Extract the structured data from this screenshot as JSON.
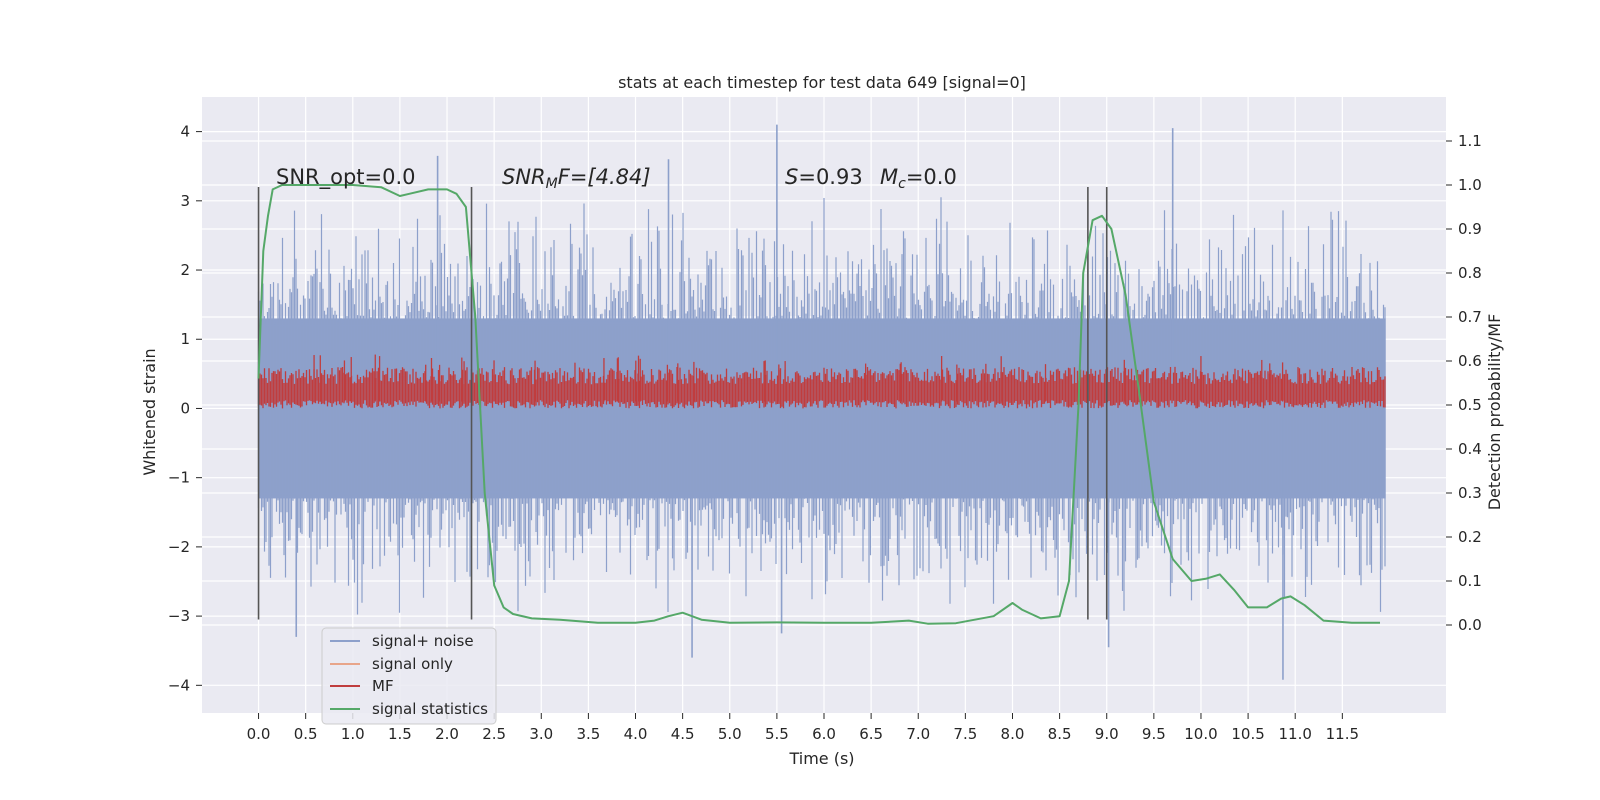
{
  "chart_data": {
    "type": "line",
    "title": "stats at each timestep for test data 649 [signal=0]",
    "xlabel": "Time (s)",
    "ylabel_left": "Whitened strain",
    "ylabel_right": "Detection probability/MF",
    "xlim": [
      -0.6,
      12.6
    ],
    "ylim_left": [
      -4.4,
      4.5
    ],
    "ylim_right": [
      -0.2,
      1.2
    ],
    "x_ticks": [
      0.0,
      0.5,
      1.0,
      1.5,
      2.0,
      2.5,
      3.0,
      3.5,
      4.0,
      4.5,
      5.0,
      5.5,
      6.0,
      6.5,
      7.0,
      7.5,
      8.0,
      8.5,
      9.0,
      9.5,
      10.0,
      10.5,
      11.0,
      11.5
    ],
    "x_tick_labels": [
      "0.0",
      "0.5",
      "1.0",
      "1.5",
      "2.0",
      "2.5",
      "3.0",
      "3.5",
      "4.0",
      "4.5",
      "5.0",
      "5.5",
      "6.0",
      "6.5",
      "7.0",
      "7.5",
      "8.0",
      "8.5",
      "9.0",
      "9.5",
      "10.0",
      "10.5",
      "11.0",
      "11.5"
    ],
    "y_left_ticks": [
      -4,
      -3,
      -2,
      -1,
      0,
      1,
      2,
      3,
      4
    ],
    "y_left_tick_labels": [
      "−4",
      "−3",
      "−2",
      "−1",
      "0",
      "1",
      "2",
      "3",
      "4"
    ],
    "y_right_ticks": [
      0.0,
      0.1,
      0.2,
      0.3,
      0.4,
      0.5,
      0.6,
      0.7,
      0.8,
      0.9,
      1.0,
      1.1
    ],
    "y_right_tick_labels": [
      "0.0",
      "0.1",
      "0.2",
      "0.3",
      "0.4",
      "0.5",
      "0.6",
      "0.7",
      "0.8",
      "0.9",
      "1.0",
      "1.1"
    ],
    "grid": true,
    "legend_placement": "lower-left",
    "annotations": {
      "snr_opt": "SNR_opt=0.0",
      "snr_mf_base": "SNR",
      "snr_mf_sub": "M",
      "snr_mf_rest": "F=[4.84]",
      "s_var": "S",
      "s_rest": "=0.93",
      "mc_var": "M",
      "mc_sub": "c",
      "mc_rest": "=0.0"
    },
    "markers": [
      {
        "x": 0.0,
        "y_range": [
          -3.05,
          3.2
        ]
      },
      {
        "x": 2.26,
        "y_range": [
          -3.05,
          3.2
        ]
      },
      {
        "x": 8.8,
        "y_range": [
          -3.05,
          3.2
        ]
      },
      {
        "x": 9.0,
        "y_range": [
          -3.05,
          3.2
        ]
      }
    ],
    "noise_envelope": {
      "x_start": 0.0,
      "x_end": 11.96,
      "typical_low": -2.0,
      "typical_high": 2.0,
      "spikes": [
        {
          "x": 5.5,
          "y": 4.1
        },
        {
          "x": 9.7,
          "y": 4.05
        },
        {
          "x": 1.9,
          "y": 3.65
        },
        {
          "x": 4.35,
          "y": 3.6
        },
        {
          "x": 0.4,
          "y": -3.3
        },
        {
          "x": 4.6,
          "y": -3.6
        },
        {
          "x": 9.02,
          "y": -3.45
        },
        {
          "x": 10.87,
          "y": -3.92
        },
        {
          "x": 5.55,
          "y": -3.25
        }
      ]
    },
    "mf_band": {
      "low": 0.0,
      "high": 0.55,
      "peak": 0.78
    },
    "series": [
      {
        "name": "signal+ noise",
        "color": "#8da0cb",
        "axis": "left"
      },
      {
        "name": "signal only",
        "color": "#e8a58a",
        "axis": "left"
      },
      {
        "name": "MF",
        "color": "#c03d3e",
        "axis": "left"
      },
      {
        "name": "signal statistics",
        "color": "#55a868",
        "axis": "right",
        "x": [
          0.0,
          0.05,
          0.1,
          0.15,
          0.25,
          0.5,
          1.0,
          1.3,
          1.5,
          1.6,
          1.8,
          2.0,
          2.1,
          2.2,
          2.3,
          2.4,
          2.5,
          2.6,
          2.7,
          2.9,
          3.2,
          3.6,
          4.0,
          4.2,
          4.35,
          4.5,
          4.7,
          5.0,
          5.5,
          6.0,
          6.5,
          6.9,
          7.1,
          7.4,
          7.8,
          8.0,
          8.1,
          8.3,
          8.5,
          8.6,
          8.7,
          8.75,
          8.85,
          8.95,
          9.05,
          9.2,
          9.35,
          9.5,
          9.7,
          9.9,
          10.05,
          10.2,
          10.35,
          10.5,
          10.7,
          10.85,
          10.95,
          11.1,
          11.3,
          11.6,
          11.9
        ],
        "y": [
          0.56,
          0.85,
          0.93,
          0.99,
          1.0,
          1.0,
          1.0,
          0.995,
          0.975,
          0.98,
          0.99,
          0.99,
          0.98,
          0.95,
          0.7,
          0.3,
          0.09,
          0.04,
          0.025,
          0.015,
          0.012,
          0.005,
          0.005,
          0.01,
          0.02,
          0.028,
          0.012,
          0.005,
          0.006,
          0.005,
          0.005,
          0.01,
          0.003,
          0.004,
          0.02,
          0.05,
          0.035,
          0.015,
          0.02,
          0.1,
          0.5,
          0.8,
          0.92,
          0.93,
          0.9,
          0.75,
          0.52,
          0.28,
          0.15,
          0.1,
          0.105,
          0.115,
          0.08,
          0.04,
          0.04,
          0.06,
          0.065,
          0.045,
          0.01,
          0.005,
          0.005
        ]
      }
    ]
  }
}
